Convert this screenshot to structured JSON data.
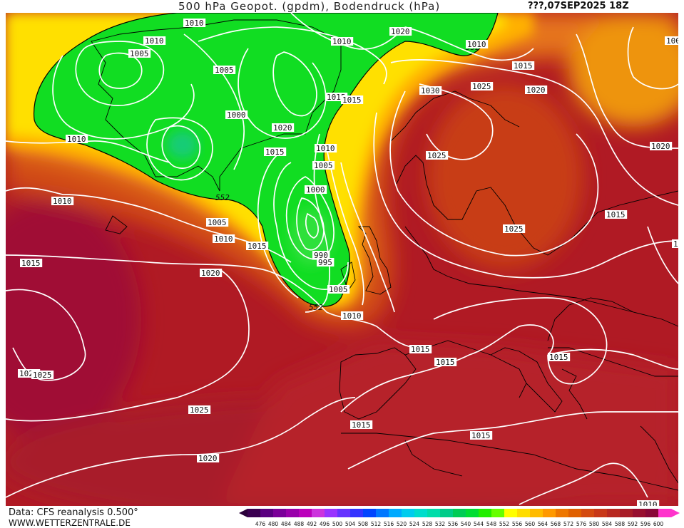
{
  "header": {
    "title": "500 hPa Geopot. (gpdm), Bodendruck (hPa)",
    "valid_time": "???,07SEP2025 18Z"
  },
  "footer": {
    "source": "Data: CFS reanalysis 0.500°",
    "website": "WWW.WETTERZENTRALE.DE"
  },
  "legend": {
    "ticks": [
      "476",
      "480",
      "484",
      "488",
      "492",
      "496",
      "500",
      "504",
      "508",
      "512",
      "516",
      "520",
      "524",
      "528",
      "532",
      "536",
      "540",
      "544",
      "548",
      "552",
      "556",
      "560",
      "564",
      "568",
      "572",
      "576",
      "580",
      "584",
      "588",
      "592",
      "596",
      "600"
    ],
    "colors": [
      "#3a0050",
      "#5a0080",
      "#7a0099",
      "#9900aa",
      "#bb00bb",
      "#cc33dd",
      "#9933ff",
      "#6633ff",
      "#3333ff",
      "#0044ff",
      "#0077ff",
      "#00aaff",
      "#00ccee",
      "#00ddcc",
      "#00ddaa",
      "#00cc88",
      "#00cc55",
      "#00dd33",
      "#22ee00",
      "#66ff00",
      "#ffff00",
      "#ffdd00",
      "#ffbb00",
      "#ff9900",
      "#ee7700",
      "#e06000",
      "#d44a10",
      "#c83818",
      "#b82820",
      "#a81c28",
      "#980f30",
      "#880838",
      "#ff33cc"
    ]
  },
  "isobar_labels": [
    {
      "text": "1010"
    },
    {
      "text": "1010"
    },
    {
      "text": "1005"
    },
    {
      "text": "1010"
    },
    {
      "text": "1020"
    },
    {
      "text": "1010"
    },
    {
      "text": "1005"
    },
    {
      "text": "1015"
    },
    {
      "text": "1000"
    },
    {
      "text": "1020"
    },
    {
      "text": "1015"
    },
    {
      "text": "1010"
    },
    {
      "text": "1005"
    },
    {
      "text": "1000"
    },
    {
      "text": "990"
    },
    {
      "text": "995"
    },
    {
      "text": "1005"
    },
    {
      "text": "1010"
    },
    {
      "text": "1010"
    },
    {
      "text": "1015"
    },
    {
      "text": "1005"
    },
    {
      "text": "1010"
    },
    {
      "text": "1015"
    },
    {
      "text": "1025"
    },
    {
      "text": "1020"
    },
    {
      "text": "1025"
    },
    {
      "text": "1025"
    },
    {
      "text": "1020"
    },
    {
      "text": "1015"
    },
    {
      "text": "1015"
    },
    {
      "text": "1015"
    },
    {
      "text": "1015"
    },
    {
      "text": "1015"
    },
    {
      "text": "1025"
    },
    {
      "text": "1020"
    },
    {
      "text": "1015"
    },
    {
      "text": "1005"
    },
    {
      "text": "1030"
    },
    {
      "text": "1025"
    },
    {
      "text": "1025"
    },
    {
      "text": "1020"
    },
    {
      "text": "1010"
    },
    {
      "text": "1015"
    },
    {
      "text": "1015"
    },
    {
      "text": "1010"
    },
    {
      "text": "1015"
    }
  ],
  "geopotential_labels": [
    {
      "text": "552"
    },
    {
      "text": "552"
    },
    {
      "text": "552"
    }
  ]
}
